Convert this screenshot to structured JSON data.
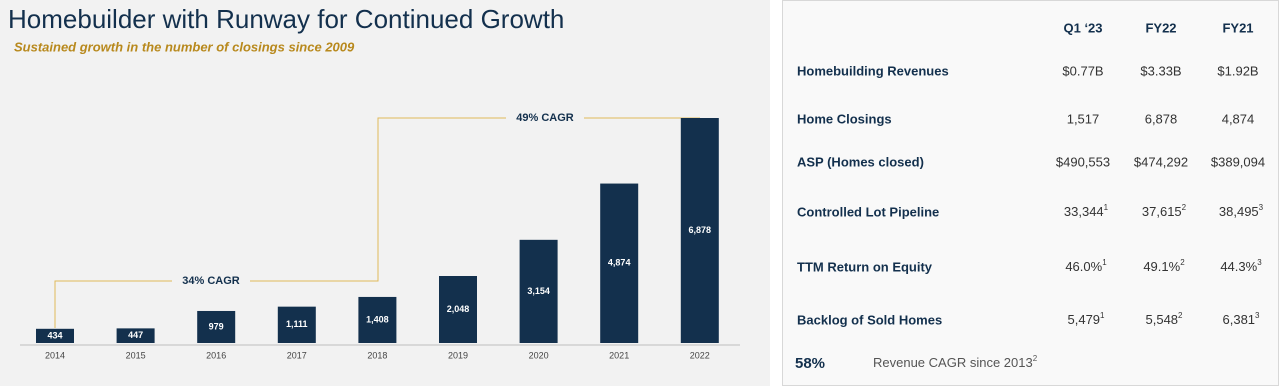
{
  "title": "Homebuilder with Runway for Continued Growth",
  "subtitle": "Sustained growth in the number of closings since 2009",
  "chart_data": {
    "type": "bar",
    "categories": [
      "2014",
      "2015",
      "2016",
      "2017",
      "2018",
      "2019",
      "2020",
      "2021",
      "2022"
    ],
    "values": [
      434,
      447,
      979,
      1111,
      1408,
      2048,
      3154,
      4874,
      6878
    ],
    "value_labels": [
      "434",
      "447",
      "979",
      "1,111",
      "1,408",
      "2,048",
      "3,154",
      "4,874",
      "6,878"
    ],
    "color": "#13304d",
    "annotations": [
      "34% CAGR",
      "49% CAGR"
    ]
  },
  "table": {
    "header": [
      "Q1 ‘23",
      "FY22",
      "FY21"
    ],
    "rows": [
      {
        "label": "Homebuilding Revenues",
        "cells": [
          "$0.77B",
          "$3.33B",
          "$1.92B"
        ]
      },
      {
        "label": "Home Closings",
        "cells": [
          "1,517",
          "6,878",
          "4,874"
        ]
      },
      {
        "label": "ASP (Homes closed)",
        "cells": [
          "$490,553",
          "$474,292",
          "$389,094"
        ]
      },
      {
        "label": "Controlled Lot Pipeline",
        "cells": [
          {
            "text": "33,344",
            "sup": "1"
          },
          {
            "text": "37,615",
            "sup": "2"
          },
          {
            "text": "38,495",
            "sup": "3"
          }
        ]
      },
      {
        "label": "TTM Return on Equity",
        "cells": [
          {
            "text": "46.0%",
            "sup": "1"
          },
          {
            "text": "49.1%",
            "sup": "2"
          },
          {
            "text": "44.3%",
            "sup": "3"
          }
        ]
      },
      {
        "label": "Backlog of Sold Homes",
        "cells": [
          {
            "text": "5,479",
            "sup": "1"
          },
          {
            "text": "5,548",
            "sup": "2"
          },
          {
            "text": "6,381",
            "sup": "3"
          }
        ]
      }
    ]
  },
  "footer": {
    "value": "58%",
    "text": "Revenue CAGR since 2013",
    "sup": "2"
  }
}
